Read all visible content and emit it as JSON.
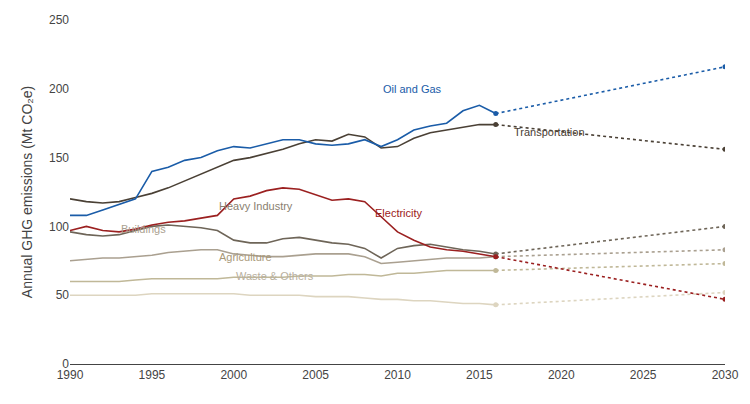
{
  "chart_data": {
    "type": "line",
    "y_label": "Annual GHG emissions (Mt CO₂e)",
    "xlim": [
      1990,
      2030
    ],
    "ylim": [
      0,
      250
    ],
    "xticks": [
      1990,
      1995,
      2000,
      2005,
      2010,
      2015,
      2020,
      2025,
      2030
    ],
    "yticks": [
      0,
      50,
      100,
      150,
      200,
      250
    ],
    "grid": false,
    "series": [
      {
        "name": "Waste & Others",
        "color": "#ddd5c0",
        "line_style": "solid",
        "x": [
          1990,
          1991,
          1992,
          1993,
          1994,
          1995,
          1996,
          1997,
          1998,
          1999,
          2000,
          2001,
          2002,
          2003,
          2004,
          2005,
          2006,
          2007,
          2008,
          2009,
          2010,
          2011,
          2012,
          2013,
          2014,
          2015,
          2016
        ],
        "values": [
          50,
          50,
          50,
          50,
          50,
          51,
          51,
          51,
          51,
          51,
          51,
          50,
          50,
          50,
          50,
          49,
          49,
          49,
          48,
          47,
          47,
          46,
          46,
          45,
          44,
          44,
          43
        ]
      },
      {
        "name": "Waste & Others",
        "color": "#ddd5c0",
        "line_style": "dotted",
        "marker": "circle",
        "x": [
          2016,
          2030
        ],
        "values": [
          43,
          52
        ]
      },
      {
        "name": "Agriculture",
        "color": "#c0b898",
        "line_style": "solid",
        "x": [
          1990,
          1991,
          1992,
          1993,
          1994,
          1995,
          1996,
          1997,
          1998,
          1999,
          2000,
          2001,
          2002,
          2003,
          2004,
          2005,
          2006,
          2007,
          2008,
          2009,
          2010,
          2011,
          2012,
          2013,
          2014,
          2015,
          2016
        ],
        "values": [
          60,
          60,
          60,
          60,
          61,
          62,
          62,
          62,
          62,
          62,
          63,
          63,
          63,
          63,
          64,
          64,
          64,
          65,
          65,
          64,
          66,
          66,
          67,
          68,
          68,
          68,
          68
        ]
      },
      {
        "name": "Agriculture",
        "color": "#c0b898",
        "line_style": "dotted",
        "marker": "circle",
        "x": [
          2016,
          2030
        ],
        "values": [
          68,
          73
        ]
      },
      {
        "name": "Buildings",
        "color": "#aaa090",
        "line_style": "solid",
        "x": [
          1990,
          1991,
          1992,
          1993,
          1994,
          1995,
          1996,
          1997,
          1998,
          1999,
          2000,
          2001,
          2002,
          2003,
          2004,
          2005,
          2006,
          2007,
          2008,
          2009,
          2010,
          2011,
          2012,
          2013,
          2014,
          2015,
          2016
        ],
        "values": [
          75,
          76,
          77,
          77,
          78,
          79,
          81,
          82,
          83,
          83,
          80,
          79,
          78,
          78,
          79,
          80,
          80,
          80,
          78,
          73,
          74,
          75,
          76,
          77,
          77,
          77,
          78
        ]
      },
      {
        "name": "Buildings",
        "color": "#aaa090",
        "line_style": "dotted",
        "marker": "circle",
        "x": [
          2016,
          2030
        ],
        "values": [
          78,
          83
        ]
      },
      {
        "name": "Heavy Industry",
        "color": "#6e6558",
        "line_style": "solid",
        "x": [
          1990,
          1991,
          1992,
          1993,
          1994,
          1995,
          1996,
          1997,
          1998,
          1999,
          2000,
          2001,
          2002,
          2003,
          2004,
          2005,
          2006,
          2007,
          2008,
          2009,
          2010,
          2011,
          2012,
          2013,
          2014,
          2015,
          2016
        ],
        "values": [
          96,
          94,
          93,
          94,
          97,
          100,
          101,
          100,
          99,
          97,
          90,
          88,
          88,
          91,
          92,
          90,
          88,
          87,
          84,
          77,
          84,
          86,
          87,
          85,
          83,
          82,
          80
        ]
      },
      {
        "name": "Heavy Industry",
        "color": "#6e6558",
        "line_style": "dotted",
        "marker": "circle",
        "x": [
          2016,
          2030
        ],
        "values": [
          80,
          100
        ]
      },
      {
        "name": "Electricity",
        "color": "#9b2020",
        "line_style": "solid",
        "x": [
          1990,
          1991,
          1992,
          1993,
          1994,
          1995,
          1996,
          1997,
          1998,
          1999,
          2000,
          2001,
          2002,
          2003,
          2004,
          2005,
          2006,
          2007,
          2008,
          2009,
          2010,
          2011,
          2012,
          2013,
          2014,
          2015,
          2016
        ],
        "values": [
          97,
          100,
          97,
          96,
          98,
          101,
          103,
          104,
          106,
          108,
          120,
          122,
          126,
          128,
          127,
          123,
          119,
          120,
          118,
          107,
          96,
          90,
          85,
          83,
          82,
          80,
          78
        ]
      },
      {
        "name": "Electricity",
        "color": "#9b2020",
        "line_style": "dotted",
        "marker": "circle",
        "x": [
          2016,
          2030
        ],
        "values": [
          78,
          47
        ]
      },
      {
        "name": "Transportation",
        "color": "#4a4035",
        "line_style": "solid",
        "x": [
          1990,
          1991,
          1992,
          1993,
          1994,
          1995,
          1996,
          1997,
          1998,
          1999,
          2000,
          2001,
          2002,
          2003,
          2004,
          2005,
          2006,
          2007,
          2008,
          2009,
          2010,
          2011,
          2012,
          2013,
          2014,
          2015,
          2016
        ],
        "values": [
          120,
          118,
          117,
          118,
          121,
          124,
          128,
          133,
          138,
          143,
          148,
          150,
          153,
          156,
          160,
          163,
          162,
          167,
          165,
          157,
          158,
          164,
          168,
          170,
          172,
          174,
          174
        ]
      },
      {
        "name": "Transportation",
        "color": "#4a4035",
        "line_style": "dotted",
        "marker": "circle",
        "x": [
          2016,
          2030
        ],
        "values": [
          174,
          156
        ]
      },
      {
        "name": "Oil and Gas",
        "color": "#1a5ca8",
        "line_style": "solid",
        "x": [
          1990,
          1991,
          1992,
          1993,
          1994,
          1995,
          1996,
          1997,
          1998,
          1999,
          2000,
          2001,
          2002,
          2003,
          2004,
          2005,
          2006,
          2007,
          2008,
          2009,
          2010,
          2011,
          2012,
          2013,
          2014,
          2015,
          2016
        ],
        "values": [
          108,
          108,
          112,
          116,
          120,
          140,
          143,
          148,
          150,
          155,
          158,
          157,
          160,
          163,
          163,
          160,
          159,
          160,
          163,
          158,
          163,
          170,
          173,
          175,
          184,
          188,
          182
        ]
      },
      {
        "name": "Oil and Gas",
        "color": "#1a5ca8",
        "line_style": "dotted",
        "marker": "circle",
        "x": [
          2016,
          2030
        ],
        "values": [
          182,
          216
        ]
      }
    ],
    "annotations": [
      {
        "text": "Oil and Gas",
        "x": 2009,
        "y": 194,
        "color": "#1a5ca8"
      },
      {
        "text": "Transportation",
        "x": 2017,
        "y": 163,
        "color": "#4a4035"
      },
      {
        "text": "Electricity",
        "x": 2008.5,
        "y": 104,
        "color": "#9b2020"
      },
      {
        "text": "Heavy Industry",
        "x": 1999,
        "y": 109,
        "color": "#8a8070"
      },
      {
        "text": "Buildings",
        "x": 1993,
        "y": 92,
        "color": "#aaa090"
      },
      {
        "text": "Agriculture",
        "x": 1999,
        "y": 72,
        "color": "#a89878"
      },
      {
        "text": "Waste & Others",
        "x": 2000,
        "y": 58,
        "color": "#b8b0a0"
      }
    ]
  }
}
